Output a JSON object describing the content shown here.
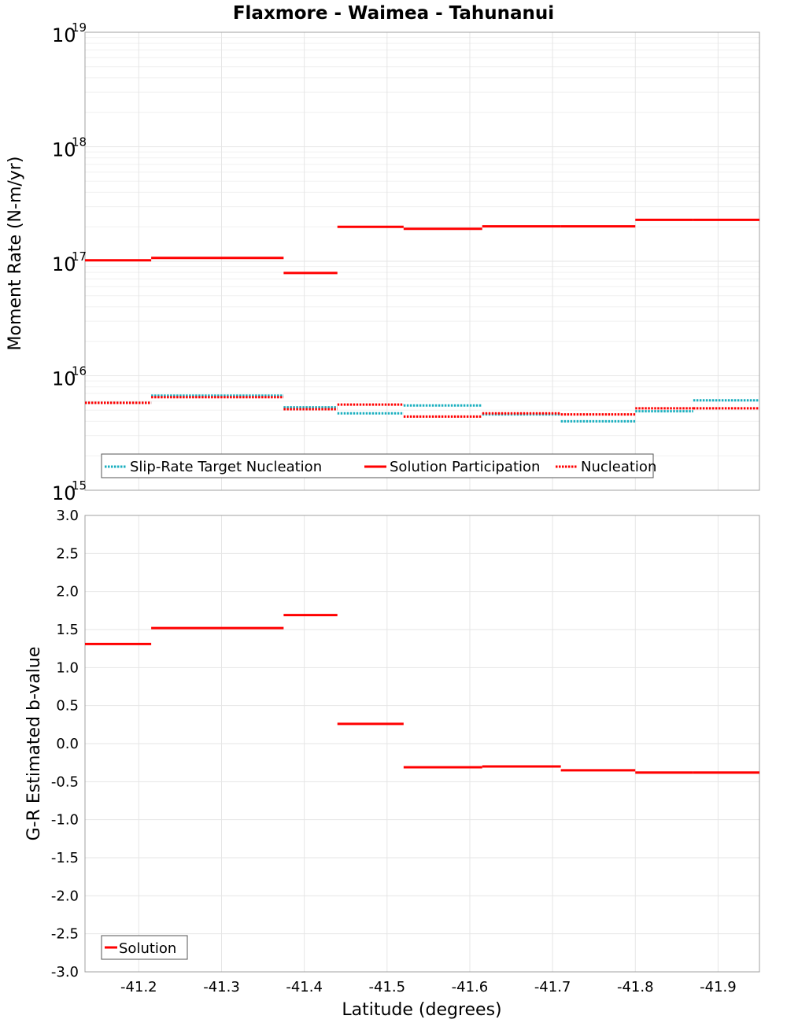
{
  "title": "Flaxmore - Waimea - Tahunanui",
  "x_axis": {
    "label": "Latitude (degrees)",
    "range": [
      -41.135,
      -41.95
    ],
    "ticks": [
      -41.2,
      -41.3,
      -41.4,
      -41.5,
      -41.6,
      -41.7,
      -41.8,
      -41.9
    ],
    "tick_labels": [
      "-41.2",
      "-41.3",
      "-41.4",
      "-41.5",
      "-41.6",
      "-41.7",
      "-41.8",
      "-41.9"
    ]
  },
  "colors": {
    "slip_rate_target": "#1aafbf",
    "solution": "#ff0000",
    "nucleation": "#ff0000"
  },
  "chart_data": [
    {
      "type": "line",
      "name": "moment-rate",
      "ylabel": "Moment Rate (N-m/yr)",
      "yscale": "log",
      "ylim": [
        1000000000000000.0,
        1e+19
      ],
      "y_ticks": [
        {
          "base": "10",
          "exp": "15",
          "value": 1000000000000000.0
        },
        {
          "base": "10",
          "exp": "16",
          "value": 1e+16
        },
        {
          "base": "10",
          "exp": "17",
          "value": 1e+17
        },
        {
          "base": "10",
          "exp": "18",
          "value": 1e+18
        },
        {
          "base": "10",
          "exp": "19",
          "value": 1e+19
        }
      ],
      "grid": true,
      "legend_placement": "bottom-left",
      "legend": [
        "Slip-Rate Target Nucleation",
        "Solution Participation",
        "Nucleation"
      ],
      "series": [
        {
          "name": "Slip-Rate Target Nucleation",
          "style": "dotted",
          "segments": [
            {
              "x": [
                -41.135,
                -41.215
              ],
              "y": 5800000000000000.0
            },
            {
              "x": [
                -41.215,
                -41.375
              ],
              "y": 6700000000000000.0
            },
            {
              "x": [
                -41.375,
                -41.44
              ],
              "y": 5300000000000000.0
            },
            {
              "x": [
                -41.44,
                -41.52
              ],
              "y": 4700000000000000.0
            },
            {
              "x": [
                -41.52,
                -41.615
              ],
              "y": 5500000000000000.0
            },
            {
              "x": [
                -41.615,
                -41.71
              ],
              "y": 4600000000000000.0
            },
            {
              "x": [
                -41.71,
                -41.8
              ],
              "y": 4000000000000000.0
            },
            {
              "x": [
                -41.8,
                -41.87
              ],
              "y": 4900000000000000.0
            },
            {
              "x": [
                -41.87,
                -41.95
              ],
              "y": 6100000000000000.0
            }
          ]
        },
        {
          "name": "Solution Participation",
          "style": "solid",
          "segments": [
            {
              "x": [
                -41.135,
                -41.215
              ],
              "y": 1.02e+17
            },
            {
              "x": [
                -41.215,
                -41.375
              ],
              "y": 1.07e+17
            },
            {
              "x": [
                -41.375,
                -41.44
              ],
              "y": 7.9e+16
            },
            {
              "x": [
                -41.44,
                -41.52
              ],
              "y": 2e+17
            },
            {
              "x": [
                -41.52,
                -41.615
              ],
              "y": 1.92e+17
            },
            {
              "x": [
                -41.615,
                -41.71
              ],
              "y": 2.02e+17
            },
            {
              "x": [
                -41.71,
                -41.8
              ],
              "y": 2.02e+17
            },
            {
              "x": [
                -41.8,
                -41.87
              ],
              "y": 2.3e+17
            },
            {
              "x": [
                -41.87,
                -41.95
              ],
              "y": 2.3e+17
            }
          ]
        },
        {
          "name": "Nucleation",
          "style": "dotted",
          "segments": [
            {
              "x": [
                -41.135,
                -41.215
              ],
              "y": 5800000000000000.0
            },
            {
              "x": [
                -41.215,
                -41.375
              ],
              "y": 6500000000000000.0
            },
            {
              "x": [
                -41.375,
                -41.44
              ],
              "y": 5100000000000000.0
            },
            {
              "x": [
                -41.44,
                -41.52
              ],
              "y": 5600000000000000.0
            },
            {
              "x": [
                -41.52,
                -41.615
              ],
              "y": 4400000000000000.0
            },
            {
              "x": [
                -41.615,
                -41.71
              ],
              "y": 4700000000000000.0
            },
            {
              "x": [
                -41.71,
                -41.8
              ],
              "y": 4600000000000000.0
            },
            {
              "x": [
                -41.8,
                -41.87
              ],
              "y": 5200000000000000.0
            },
            {
              "x": [
                -41.87,
                -41.95
              ],
              "y": 5200000000000000.0
            }
          ]
        }
      ]
    },
    {
      "type": "line",
      "name": "b-value",
      "ylabel": "G-R Estimated b-value",
      "yscale": "linear",
      "ylim": [
        -3.0,
        3.0
      ],
      "y_ticks": [
        3.0,
        2.5,
        2.0,
        1.5,
        1.0,
        0.5,
        0.0,
        -0.5,
        -1.0,
        -1.5,
        -2.0,
        -2.5,
        -3.0
      ],
      "y_tick_labels": [
        "3.0",
        "2.5",
        "2.0",
        "1.5",
        "1.0",
        "0.5",
        "0.0",
        "-0.5",
        "-1.0",
        "-1.5",
        "-2.0",
        "-2.5",
        "-3.0"
      ],
      "grid": true,
      "legend_placement": "bottom-left",
      "legend": [
        "Solution"
      ],
      "series": [
        {
          "name": "Solution",
          "style": "solid",
          "segments": [
            {
              "x": [
                -41.135,
                -41.215
              ],
              "y": 1.31
            },
            {
              "x": [
                -41.215,
                -41.375
              ],
              "y": 1.52
            },
            {
              "x": [
                -41.375,
                -41.44
              ],
              "y": 1.69
            },
            {
              "x": [
                -41.44,
                -41.52
              ],
              "y": 0.26
            },
            {
              "x": [
                -41.52,
                -41.615
              ],
              "y": -0.31
            },
            {
              "x": [
                -41.615,
                -41.71
              ],
              "y": -0.3
            },
            {
              "x": [
                -41.71,
                -41.8
              ],
              "y": -0.35
            },
            {
              "x": [
                -41.8,
                -41.87
              ],
              "y": -0.38
            },
            {
              "x": [
                -41.87,
                -41.95
              ],
              "y": -0.38
            }
          ]
        }
      ]
    }
  ]
}
